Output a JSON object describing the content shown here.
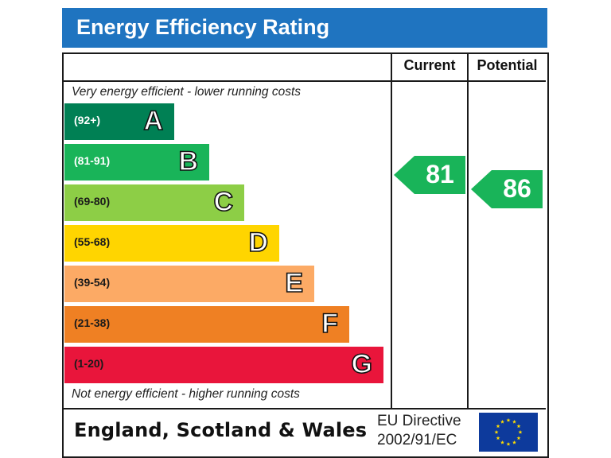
{
  "header": {
    "title": "Energy Efficiency Rating"
  },
  "columns": {
    "current": "Current",
    "potential": "Potential"
  },
  "notes": {
    "top": "Very energy efficient - lower running costs",
    "bottom": "Not energy efficient - higher running costs"
  },
  "chart_data": {
    "type": "bar",
    "title": "Energy Efficiency Rating",
    "categories": [
      "A",
      "B",
      "C",
      "D",
      "E",
      "F",
      "G"
    ],
    "ranges": [
      "(92+)",
      "(81-91)",
      "(69-80)",
      "(55-68)",
      "(39-54)",
      "(21-38)",
      "(1-20)"
    ],
    "band_colors": [
      "#008054",
      "#19b459",
      "#8dce46",
      "#ffd500",
      "#fcaa65",
      "#ef8023",
      "#e9153b"
    ],
    "range_text_colors": [
      "#ffffff",
      "#ffffff",
      "#1a1a1a",
      "#1a1a1a",
      "#1a1a1a",
      "#1a1a1a",
      "#1a1a1a"
    ],
    "current": {
      "label": "Current",
      "value": "81",
      "band": "B",
      "color": "#19b459"
    },
    "potential": {
      "label": "Potential",
      "value": "86",
      "band": "B",
      "color": "#19b459"
    }
  },
  "footer": {
    "region": "England, Scotland & Wales",
    "directive_line1": "EU Directive",
    "directive_line2": "2002/91/EC"
  }
}
